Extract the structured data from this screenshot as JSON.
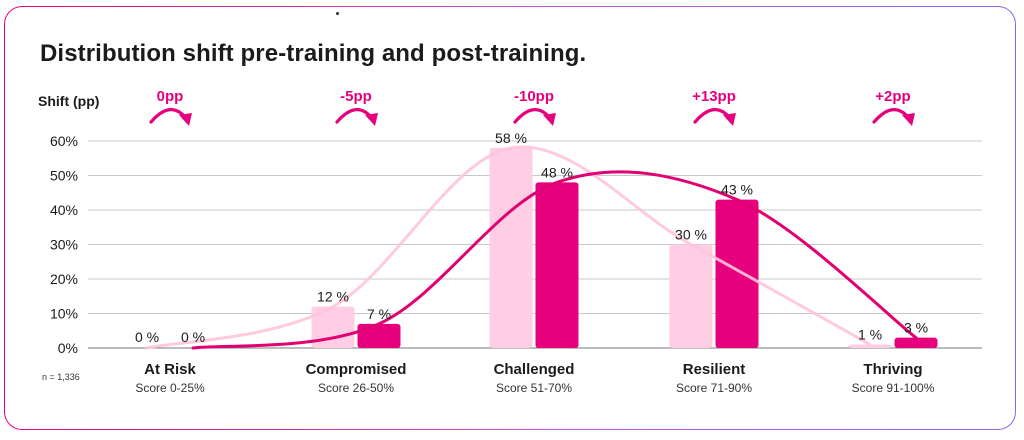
{
  "title": "Distribution shift pre-training and post-training.",
  "note": "n = 1,336",
  "colors": {
    "pre": "#ffcde4",
    "post": "#e6007e",
    "pre_line": "#ffc4dd",
    "post_line": "#e0006f",
    "shift": "#e6007e",
    "grid": "#c8c8c8"
  },
  "chart_data": {
    "type": "bar",
    "ylabel": "Shift (pp)",
    "ylim": [
      0,
      60
    ],
    "yticks": [
      "0%",
      "10%",
      "20%",
      "30%",
      "40%",
      "50%",
      "60%"
    ],
    "categories": [
      "At Risk",
      "Compromised",
      "Challenged",
      "Resilient",
      "Thriving"
    ],
    "subcategories": [
      "Score 0-25%",
      "Score 26-50%",
      "Score 51-70%",
      "Score 71-90%",
      "Score 91-100%"
    ],
    "series": [
      {
        "values": [
          0,
          12,
          58,
          30,
          1
        ],
        "labels": [
          "0 %",
          "12 %",
          "58 %",
          "30 %",
          "1 %"
        ]
      },
      {
        "values": [
          0,
          7,
          48,
          43,
          3
        ],
        "labels": [
          "0 %",
          "7 %",
          "48 %",
          "43 %",
          "3 %"
        ]
      }
    ],
    "shifts": [
      "0pp",
      "-5pp",
      "-10pp",
      "+13pp",
      "+2pp"
    ],
    "grid": true
  }
}
